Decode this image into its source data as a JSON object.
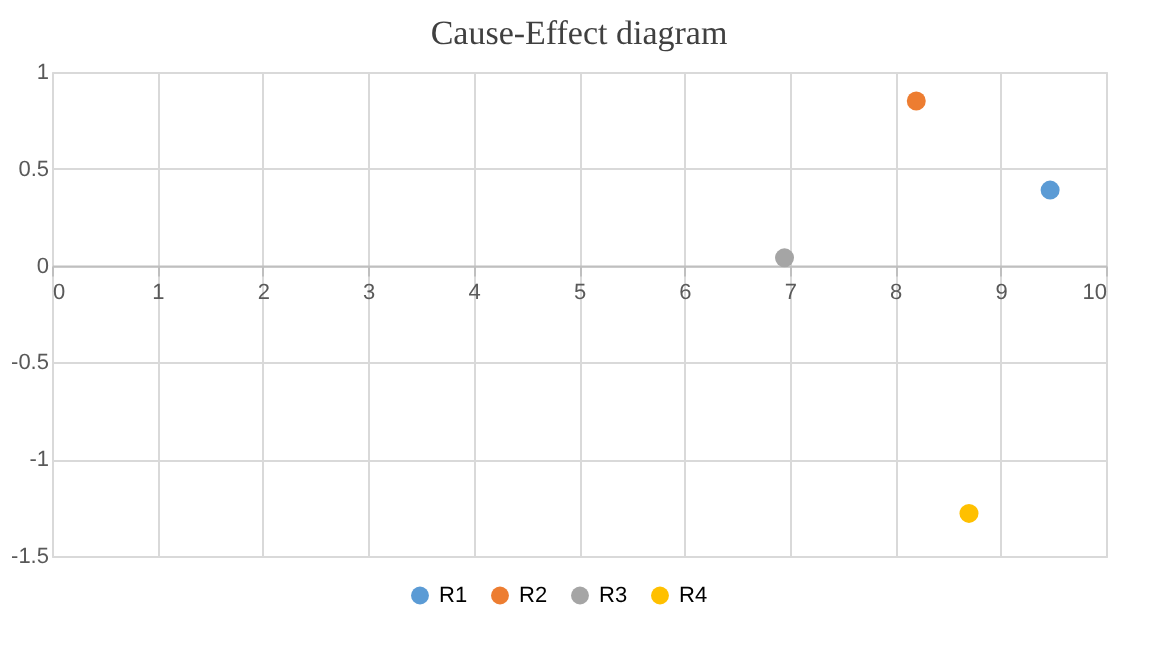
{
  "chart_data": {
    "type": "scatter",
    "title": "Cause-Effect diagram",
    "series": [
      {
        "name": "R1",
        "color": "#5b9bd5",
        "x": [
          9.47
        ],
        "values": [
          0.39
        ]
      },
      {
        "name": "R2",
        "color": "#ed7d31",
        "x": [
          8.2
        ],
        "values": [
          0.85
        ]
      },
      {
        "name": "R3",
        "color": "#a5a5a5",
        "x": [
          6.95
        ],
        "values": [
          0.04
        ]
      },
      {
        "name": "R4",
        "color": "#ffc000",
        "x": [
          8.7
        ],
        "values": [
          -1.28
        ]
      }
    ],
    "xlim": [
      0,
      10
    ],
    "xticks": [
      0,
      1,
      2,
      3,
      4,
      5,
      6,
      7,
      8,
      9,
      10
    ],
    "ylim": [
      -1.5,
      1
    ],
    "yticks": [
      -1.5,
      -1,
      -0.5,
      0,
      0.5,
      1
    ],
    "grid": true,
    "legend": "bottom",
    "marker": "circle"
  }
}
